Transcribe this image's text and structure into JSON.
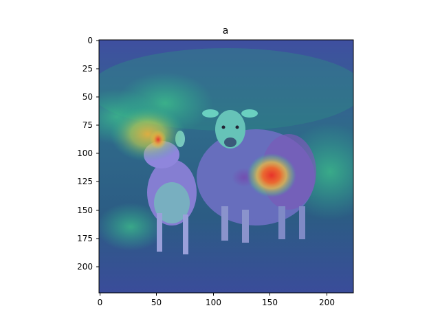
{
  "figure": {
    "title": "a",
    "image_subject": "two sheep (a ewe and a lamb) standing on grass with an attention heatmap overlay",
    "x_ticks": [
      "0",
      "50",
      "100",
      "150",
      "200"
    ],
    "y_ticks": [
      "0",
      "25",
      "50",
      "75",
      "100",
      "125",
      "150",
      "175",
      "200"
    ],
    "colors": {
      "overlay_base": "#3b3aa8",
      "hot_spot": "#e8322a",
      "warm": "#f2c93a",
      "cool_green": "#2fbf8f"
    }
  }
}
